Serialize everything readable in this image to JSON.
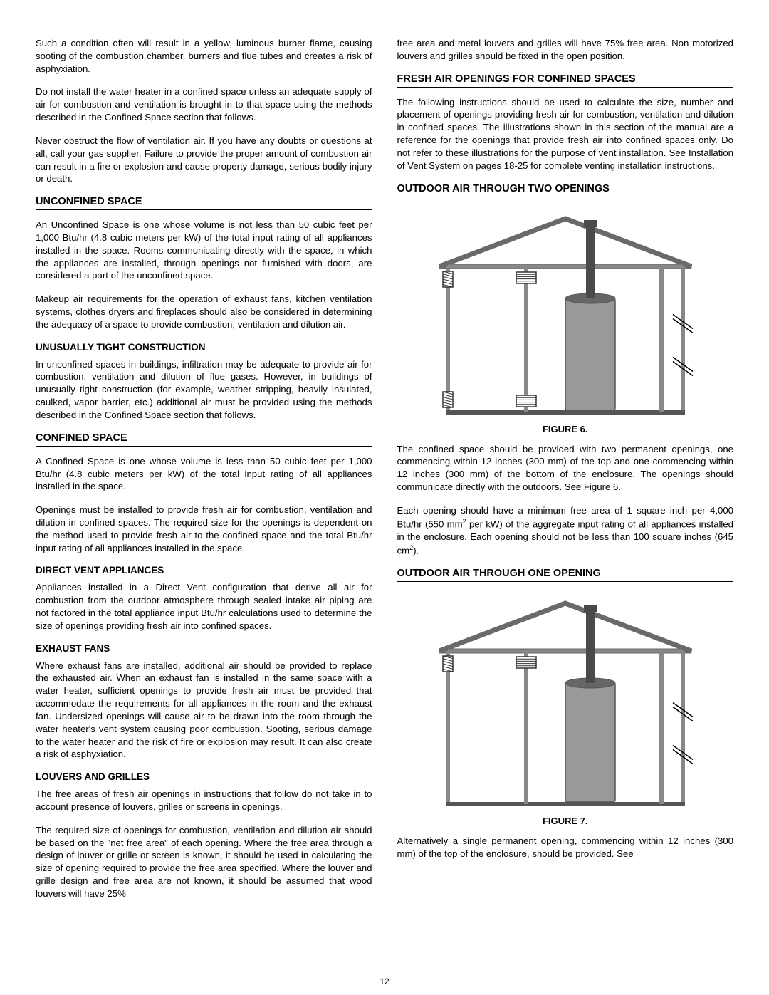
{
  "col1": {
    "p1": "Such a condition often will result in a yellow, luminous burner flame, causing sooting of the combustion chamber, burners and flue tubes and creates a risk of asphyxiation.",
    "p2": "Do not install the water heater in a confined space unless an adequate supply of air for combustion and ventilation is brought in to that space using the methods described in the Confined Space section that follows.",
    "p3": "Never obstruct the flow of ventilation air. If you have any doubts or questions at all, call your gas supplier. Failure to provide the proper amount of combustion air can result in a fire or explosion and cause property damage, serious bodily injury or death.",
    "h_unconfined": "UNCONFINED SPACE",
    "p4": "An Unconfined Space is one whose volume is not less than 50 cubic feet per 1,000 Btu/hr (4.8 cubic meters per kW) of the total input rating of all appliances installed in the space. Rooms communicating directly with the space, in which the appliances are installed, through openings not furnished with doors, are considered a part of the unconfined space.",
    "p5": "Makeup air requirements for the operation of exhaust fans, kitchen ventilation systems, clothes dryers and fireplaces should also be considered in determining the adequacy of a space to provide combustion, ventilation and dilution air.",
    "h_tight": "UNUSUALLY TIGHT CONSTRUCTION",
    "p6": "In unconfined spaces in buildings, infiltration may be adequate to provide air for combustion, ventilation and dilution of flue gases. However, in buildings of unusually tight construction (for example, weather stripping, heavily insulated, caulked, vapor barrier, etc.) additional air must be provided using the methods described in the Confined Space section that follows.",
    "h_confined": "CONFINED SPACE",
    "p7": "A Confined Space is one whose volume is less than 50 cubic feet per 1,000 Btu/hr (4.8 cubic meters per kW) of the total input rating of all appliances installed in the space.",
    "p8": "Openings must be installed to provide fresh air for combustion, ventilation and dilution in confined spaces. The required size for the openings is dependent on the method used to provide fresh air to the confined space and the total Btu/hr input rating of all appliances installed in the space.",
    "h_direct": "DIRECT VENT APPLIANCES",
    "p9": "Appliances installed in a Direct Vent configuration that derive all air for combustion from the outdoor atmosphere through sealed intake air piping are not factored in the total appliance input Btu/hr calculations used to determine the size of openings providing fresh air into confined spaces.",
    "h_exhaust": "EXHAUST FANS",
    "p10": "Where exhaust fans are installed, additional air should be provided to replace the exhausted air. When an exhaust fan is installed in the same space with a water heater, sufficient openings to provide fresh air must be provided that accommodate the requirements for all appliances in the room and the exhaust fan. Undersized openings will cause air to be drawn into the room through the water heater's vent system causing poor combustion. Sooting, serious damage to the water heater and the risk of fire or explosion may result. It can also create a risk of asphyxiation.",
    "h_louvers": "LOUVERS AND GRILLES",
    "p11": "The free areas of fresh air openings in instructions that follow do not take in to account presence of louvers, grilles or screens in openings.",
    "p12": "The required size of openings for combustion, ventilation and dilution air should be based on the \"net free area\" of each opening. Where the free area through a design of louver or grille or screen is known, it should be used in calculating the size of opening required to provide the free area specified. Where the louver and grille design and free area are not known, it should be assumed that wood louvers will have 25%"
  },
  "col2": {
    "p1": "free area and metal louvers and grilles will have 75% free area. Non motorized louvers and grilles should be fixed in the open position.",
    "h_fresh": "FRESH AIR OPENINGS FOR CONFINED SPACES",
    "p2": "The following instructions should be used to calculate the size, number and placement of openings providing fresh air for combustion, ventilation and dilution in confined spaces. The illustrations shown in this section of the manual are a reference for the openings that provide fresh air into confined spaces only. Do not refer to these illustrations for the purpose of vent installation. See Installation of Vent System on pages 18-25 for complete venting installation instructions.",
    "h_two": "OUTDOOR AIR THROUGH TWO OPENINGS",
    "fig6_caption": "FIGURE 6.",
    "p3": "The confined space should be provided with two permanent openings, one commencing within 12 inches (300 mm) of the top and one commencing within 12 inches (300 mm) of the bottom of the enclosure. The openings should communicate directly with the outdoors. See Figure 6.",
    "p4_a": "Each opening should have a minimum free area of 1 square inch per 4,000 Btu/hr (550 mm",
    "p4_b": " per kW) of the aggregate input rating of all appliances installed in the enclosure. Each opening should not be less than 100 square inches (645 cm",
    "p4_c": ").",
    "h_one": "OUTDOOR AIR THROUGH ONE OPENING",
    "fig7_caption": "FIGURE 7.",
    "p5": "Alternatively a single permanent opening, commencing within 12 inches (300 mm) of the top of the enclosure, should be provided. See"
  },
  "pagenum": "12",
  "diagram": {
    "roof_color": "#6a6a6a",
    "wall_color": "#888888",
    "wall_dark": "#555555",
    "heater_color": "#999999",
    "heater_top": "#666666",
    "pipe_color": "#4a4a4a",
    "grille_color": "#333333",
    "background": "#ffffff"
  }
}
